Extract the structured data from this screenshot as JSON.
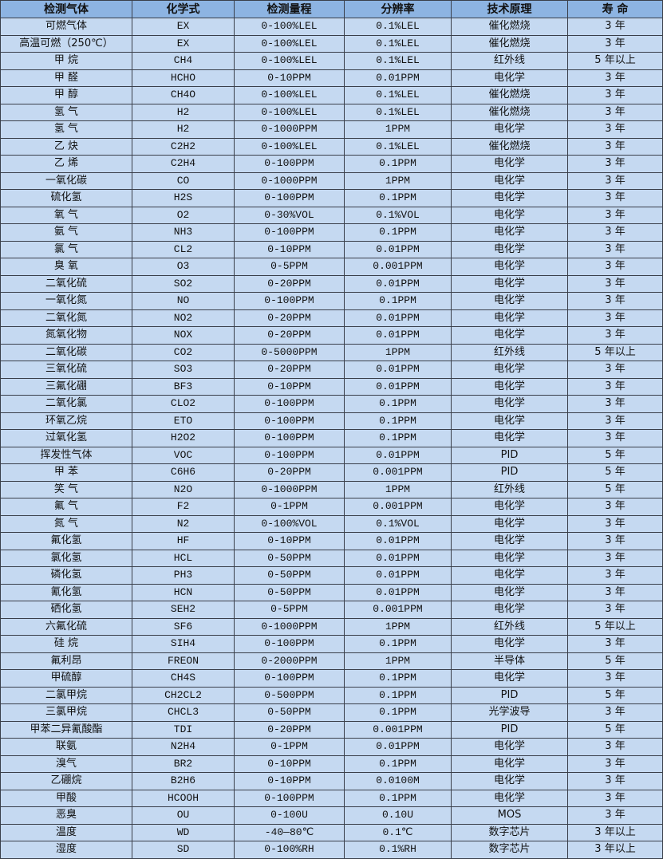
{
  "colors": {
    "header_bg": "#8db4e2",
    "row_bg": "#c5d9f1",
    "border": "#3a3f4a"
  },
  "headers": [
    "检测气体",
    "化学式",
    "检测量程",
    "分辨率",
    "技术原理",
    "寿 命"
  ],
  "rows": [
    [
      "可燃气体",
      "EX",
      "0-100%LEL",
      "0.1%LEL",
      "催化燃烧",
      "3 年"
    ],
    [
      "高温可燃（250℃）",
      "EX",
      "0-100%LEL",
      "0.1%LEL",
      "催化燃烧",
      "3 年"
    ],
    [
      "甲 烷",
      "CH4",
      "0-100%LEL",
      "0.1%LEL",
      "红外线",
      "5 年以上"
    ],
    [
      "甲 醛",
      "HCHO",
      "0-10PPM",
      "0.01PPM",
      "电化学",
      "3 年"
    ],
    [
      "甲 醇",
      "CH4O",
      "0-100%LEL",
      "0.1%LEL",
      "催化燃烧",
      "3 年"
    ],
    [
      "氢 气",
      "H2",
      "0-100%LEL",
      "0.1%LEL",
      "催化燃烧",
      "3 年"
    ],
    [
      "氢 气",
      "H2",
      "0-1000PPM",
      "1PPM",
      "电化学",
      "3 年"
    ],
    [
      "乙 炔",
      "C2H2",
      "0-100%LEL",
      "0.1%LEL",
      "催化燃烧",
      "3 年"
    ],
    [
      "乙 烯",
      "C2H4",
      "0-100PPM",
      "0.1PPM",
      "电化学",
      "3 年"
    ],
    [
      "一氧化碳",
      "CO",
      "0-1000PPM",
      "1PPM",
      "电化学",
      "3 年"
    ],
    [
      "硫化氢",
      "H2S",
      "0-100PPM",
      "0.1PPM",
      "电化学",
      "3 年"
    ],
    [
      "氧 气",
      "O2",
      "0-30%VOL",
      "0.1%VOL",
      "电化学",
      "3 年"
    ],
    [
      "氨 气",
      "NH3",
      "0-100PPM",
      "0.1PPM",
      "电化学",
      "3 年"
    ],
    [
      "氯 气",
      "CL2",
      "0-10PPM",
      "0.01PPM",
      "电化学",
      "3 年"
    ],
    [
      "臭 氧",
      "O3",
      "0-5PPM",
      "0.001PPM",
      "电化学",
      "3 年"
    ],
    [
      "二氧化硫",
      "SO2",
      "0-20PPM",
      "0.01PPM",
      "电化学",
      "3 年"
    ],
    [
      "一氧化氮",
      "NO",
      "0-100PPM",
      "0.1PPM",
      "电化学",
      "3 年"
    ],
    [
      "二氧化氮",
      "NO2",
      "0-20PPM",
      "0.01PPM",
      "电化学",
      "3 年"
    ],
    [
      "氮氧化物",
      "NOX",
      "0-20PPM",
      "0.01PPM",
      "电化学",
      "3 年"
    ],
    [
      "二氧化碳",
      "CO2",
      "0-5000PPM",
      "1PPM",
      "红外线",
      "5 年以上"
    ],
    [
      "三氧化硫",
      "SO3",
      "0-20PPM",
      "0.01PPM",
      "电化学",
      "3 年"
    ],
    [
      "三氟化硼",
      "BF3",
      "0-10PPM",
      "0.01PPM",
      "电化学",
      "3 年"
    ],
    [
      "二氧化氯",
      "CLO2",
      "0-100PPM",
      "0.1PPM",
      "电化学",
      "3 年"
    ],
    [
      "环氧乙烷",
      "ETO",
      "0-100PPM",
      "0.1PPM",
      "电化学",
      "3 年"
    ],
    [
      "过氧化氢",
      "H2O2",
      "0-100PPM",
      "0.1PPM",
      "电化学",
      "3 年"
    ],
    [
      "挥发性气体",
      "VOC",
      "0-100PPM",
      "0.01PPM",
      "PID",
      "5 年"
    ],
    [
      "甲 苯",
      "C6H6",
      "0-20PPM",
      "0.001PPM",
      "PID",
      "5 年"
    ],
    [
      "笑 气",
      "N2O",
      "0-1000PPM",
      "1PPM",
      "红外线",
      "5 年"
    ],
    [
      "氟 气",
      "F2",
      "0-1PPM",
      "0.001PPM",
      "电化学",
      "3 年"
    ],
    [
      "氮 气",
      "N2",
      "0-100%VOL",
      "0.1%VOL",
      "电化学",
      "3 年"
    ],
    [
      "氟化氢",
      "HF",
      "0-10PPM",
      "0.01PPM",
      "电化学",
      "3 年"
    ],
    [
      "氯化氢",
      "HCL",
      "0-50PPM",
      "0.01PPM",
      "电化学",
      "3 年"
    ],
    [
      "磷化氢",
      "PH3",
      "0-50PPM",
      "0.01PPM",
      "电化学",
      "3 年"
    ],
    [
      "氰化氢",
      "HCN",
      "0-50PPM",
      "0.01PPM",
      "电化学",
      "3 年"
    ],
    [
      "硒化氢",
      "SEH2",
      "0-5PPM",
      "0.001PPM",
      "电化学",
      "3 年"
    ],
    [
      "六氟化硫",
      "SF6",
      "0-1000PPM",
      "1PPM",
      "红外线",
      "5 年以上"
    ],
    [
      "硅 烷",
      "SIH4",
      "0-100PPM",
      "0.1PPM",
      "电化学",
      "3 年"
    ],
    [
      "氟利昂",
      "FREON",
      "0-2000PPM",
      "1PPM",
      "半导体",
      "5 年"
    ],
    [
      "甲硫醇",
      "CH4S",
      "0-100PPM",
      "0.1PPM",
      "电化学",
      "3 年"
    ],
    [
      "二氯甲烷",
      "CH2CL2",
      "0-500PPM",
      "0.1PPM",
      "PID",
      "5 年"
    ],
    [
      "三氯甲烷",
      "CHCL3",
      "0-50PPM",
      "0.1PPM",
      "光学波导",
      "3 年"
    ],
    [
      "甲苯二异氰酸酯",
      "TDI",
      "0-20PPM",
      "0.001PPM",
      "PID",
      "5 年"
    ],
    [
      "联氨",
      "N2H4",
      "0-1PPM",
      "0.01PPM",
      "电化学",
      "3 年"
    ],
    [
      "溴气",
      "BR2",
      "0-10PPM",
      "0.1PPM",
      "电化学",
      "3 年"
    ],
    [
      "乙硼烷",
      "B2H6",
      "0-10PPM",
      "0.0100M",
      "电化学",
      "3 年"
    ],
    [
      "甲酸",
      "HCOOH",
      "0-100PPM",
      "0.1PPM",
      "电化学",
      "3 年"
    ],
    [
      "恶臭",
      "OU",
      "0-100U",
      "0.10U",
      "MOS",
      "3 年"
    ],
    [
      "温度",
      "WD",
      "-40—80℃",
      "0.1℃",
      "数字芯片",
      "3 年以上"
    ],
    [
      "湿度",
      "SD",
      "0-100%RH",
      "0.1%RH",
      "数字芯片",
      "3 年以上"
    ]
  ]
}
